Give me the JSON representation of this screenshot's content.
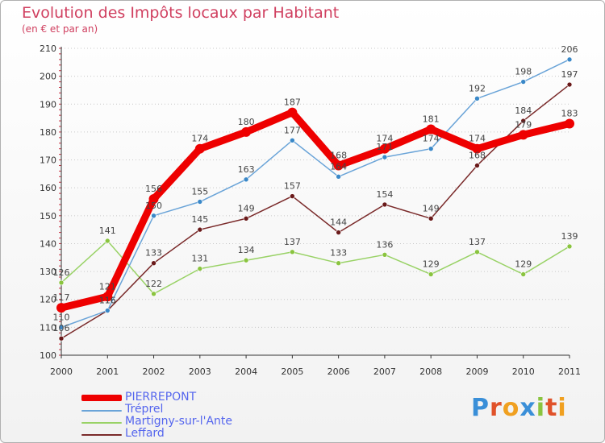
{
  "title": "Evolution des Impôts locaux par Habitant",
  "subtitle": "(en € et par an)",
  "logo": {
    "text": "Proxiti",
    "letter_colors": [
      "#3a8fd8",
      "#e0522a",
      "#f0a020",
      "#3a8fd8",
      "#8ac43f",
      "#e0522a",
      "#f0a020"
    ]
  },
  "chart_data": {
    "type": "line",
    "x": [
      "2000",
      "2001",
      "2002",
      "2003",
      "2004",
      "2005",
      "2006",
      "2007",
      "2008",
      "2009",
      "2010",
      "2011"
    ],
    "ylim": [
      100,
      210
    ],
    "yticks": [
      "100",
      "110",
      "120",
      "130",
      "140",
      "150",
      "160",
      "170",
      "180",
      "190",
      "200",
      "210"
    ],
    "grid": "horizontal-dotted",
    "legend_position": "bottom-left",
    "series": [
      {
        "name": "Martigny-sur-l'Ante",
        "color": "#99d266",
        "marker_color": "#8ac43f",
        "width": "thin",
        "values": [
          126,
          141,
          122,
          131,
          134,
          137,
          133,
          136,
          129,
          137,
          129,
          139
        ],
        "labels": [
          "126",
          "141",
          "122",
          "131",
          "134",
          "137",
          "133",
          "136",
          "129",
          "137",
          "129",
          "139"
        ]
      },
      {
        "name": "Leffard",
        "color": "#7a2a2a",
        "marker_color": "#6a1a1a",
        "width": "thin",
        "values": [
          106,
          116,
          133,
          145,
          149,
          157,
          144,
          154,
          149,
          168,
          184,
          197
        ],
        "labels": [
          "106",
          "116",
          "133",
          "145",
          "149",
          "157",
          "144",
          "154",
          "149",
          "168",
          "184",
          "197"
        ]
      },
      {
        "name": "Tréprel",
        "color": "#6aa4d8",
        "marker_color": "#3a88c8",
        "width": "thin",
        "values": [
          110,
          116,
          150,
          155,
          163,
          177,
          164,
          171,
          174,
          192,
          198,
          206
        ],
        "labels": [
          "110",
          "116",
          "150",
          "155",
          "163",
          "177",
          "164",
          "171",
          "174",
          "192",
          "198",
          "206"
        ]
      },
      {
        "name": "PIERREPONT",
        "color": "#ee0000",
        "marker_color": "#ee0000",
        "width": "thick",
        "values": [
          117,
          121,
          156,
          174,
          180,
          187,
          168,
          174,
          181,
          174,
          179,
          183
        ],
        "labels": [
          "117",
          "121",
          "156",
          "174",
          "180",
          "187",
          "168",
          "174",
          "181",
          "174",
          "179",
          "183"
        ]
      }
    ],
    "legend": [
      "PIERREPONT",
      "Tréprel",
      "Martigny-sur-l'Ante",
      "Leffard"
    ]
  }
}
